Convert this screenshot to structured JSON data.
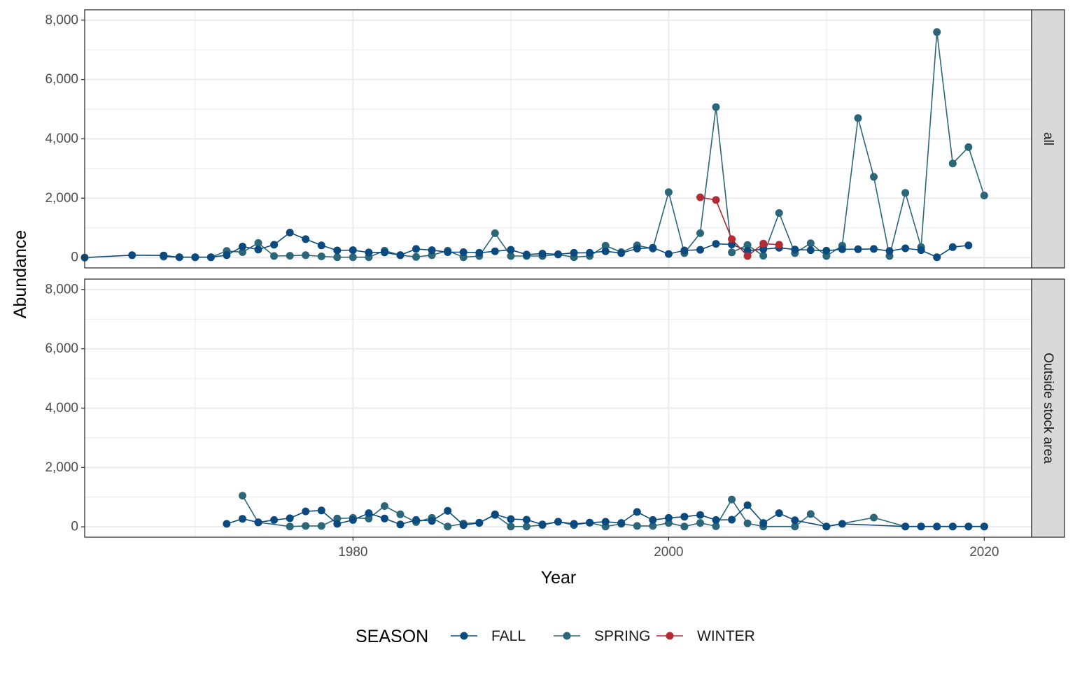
{
  "chart_data": {
    "type": "line",
    "xlabel": "Year",
    "ylabel": "Abundance",
    "xlim": [
      1963,
      2023
    ],
    "ylim": [
      -350,
      8350
    ],
    "x_ticks": [
      1980,
      2000,
      2020
    ],
    "x_tick_labels": [
      "1980",
      "2000",
      "2020"
    ],
    "y_ticks": [
      0,
      2000,
      4000,
      6000,
      8000
    ],
    "y_tick_labels": [
      "0",
      "2,000",
      "4,000",
      "6,000",
      "8,000"
    ],
    "grid": true,
    "legend": {
      "title": "SEASON",
      "position": "bottom",
      "entries": [
        "FALL",
        "SPRING",
        "WINTER"
      ]
    },
    "colors": {
      "FALL": "#0b4a7e",
      "SPRING": "#2b6778",
      "WINTER": "#b42c33",
      "strip_bg": "#d9d9d9",
      "grid": "#ebebeb"
    },
    "panels": [
      {
        "strip": "all",
        "series": [
          {
            "name": "SPRING",
            "x": [
              1968,
              1969,
              1970,
              1971,
              1972,
              1973,
              1974,
              1975,
              1976,
              1977,
              1978,
              1979,
              1980,
              1981,
              1982,
              1983,
              1984,
              1985,
              1986,
              1987,
              1988,
              1989,
              1990,
              1991,
              1992,
              1993,
              1994,
              1995,
              1996,
              1997,
              1998,
              1999,
              2000,
              2001,
              2002,
              2003,
              2004,
              2005,
              2006,
              2007,
              2008,
              2009,
              2010,
              2011,
              2012,
              2013,
              2014,
              2015,
              2016,
              2017,
              2018,
              2019,
              2020
            ],
            "y": [
              30,
              10,
              10,
              10,
              220,
              180,
              490,
              50,
              60,
              80,
              40,
              10,
              10,
              10,
              230,
              80,
              20,
              80,
              230,
              10,
              50,
              820,
              50,
              50,
              50,
              100,
              10,
              50,
              400,
              180,
              410,
              300,
              2200,
              150,
              820,
              5070,
              170,
              420,
              60,
              1500,
              150,
              480,
              50,
              400,
              4700,
              2720,
              50,
              2180,
              350,
              7600,
              3170,
              3720,
              2090
            ]
          },
          {
            "name": "FALL",
            "x": [
              1963,
              1966,
              1968,
              1969,
              1970,
              1971,
              1972,
              1973,
              1974,
              1975,
              1976,
              1977,
              1978,
              1979,
              1980,
              1981,
              1982,
              1983,
              1984,
              1985,
              1986,
              1987,
              1988,
              1989,
              1990,
              1991,
              1992,
              1993,
              1994,
              1995,
              1996,
              1997,
              1998,
              1999,
              2000,
              2001,
              2002,
              2003,
              2004,
              2005,
              2006,
              2007,
              2008,
              2009,
              2010,
              2011,
              2012,
              2013,
              2014,
              2015,
              2016,
              2017,
              2018,
              2019
            ],
            "y": [
              0,
              80,
              70,
              10,
              10,
              10,
              80,
              370,
              270,
              430,
              840,
              620,
              410,
              240,
              250,
              170,
              170,
              80,
              290,
              250,
              180,
              180,
              160,
              210,
              260,
              100,
              130,
              110,
              160,
              160,
              210,
              150,
              300,
              330,
              120,
              240,
              260,
              460,
              440,
              230,
              280,
              330,
              270,
              250,
              230,
              280,
              280,
              290,
              220,
              310,
              250,
              10,
              350,
              410
            ]
          },
          {
            "name": "WINTER",
            "x": [
              2002,
              2003,
              2004,
              2005,
              2006,
              2007
            ],
            "y": [
              2030,
              1940,
              620,
              50,
              470,
              430
            ]
          }
        ]
      },
      {
        "strip": "Outside stock area",
        "series": [
          {
            "name": "SPRING",
            "x": [
              1973,
              1974,
              1976,
              1977,
              1978,
              1979,
              1980,
              1981,
              1982,
              1983,
              1984,
              1985,
              1986,
              1987,
              1988,
              1989,
              1990,
              1991,
              1992,
              1993,
              1994,
              1995,
              1996,
              1997,
              1998,
              1999,
              2000,
              2001,
              2002,
              2003,
              2004,
              2005,
              2006,
              2008,
              2009,
              2010,
              2013,
              2015,
              2016,
              2017,
              2018,
              2019,
              2020
            ],
            "y": [
              1050,
              150,
              10,
              30,
              30,
              280,
              300,
              280,
              700,
              420,
              160,
              300,
              10,
              110,
              140,
              400,
              10,
              10,
              60,
              170,
              60,
              140,
              10,
              100,
              30,
              30,
              130,
              10,
              130,
              20,
              920,
              120,
              10,
              10,
              430,
              10,
              310,
              10,
              10,
              10,
              10,
              10,
              10
            ]
          },
          {
            "name": "FALL",
            "x": [
              1972,
              1973,
              1974,
              1975,
              1976,
              1977,
              1978,
              1979,
              1980,
              1981,
              1982,
              1983,
              1984,
              1985,
              1986,
              1987,
              1988,
              1989,
              1990,
              1991,
              1992,
              1993,
              1994,
              1995,
              1996,
              1997,
              1998,
              1999,
              2000,
              2001,
              2002,
              2003,
              2004,
              2005,
              2006,
              2007,
              2008,
              2010,
              2011,
              2015,
              2016,
              2017,
              2018,
              2019,
              2020
            ],
            "y": [
              100,
              270,
              150,
              230,
              290,
              520,
              550,
              100,
              230,
              460,
              280,
              80,
              230,
              200,
              540,
              60,
              130,
              420,
              260,
              240,
              80,
              170,
              100,
              140,
              170,
              130,
              500,
              230,
              300,
              340,
              400,
              230,
              240,
              730,
              130,
              460,
              220,
              10,
              100,
              10,
              10,
              10,
              10,
              10,
              10
            ]
          }
        ]
      }
    ]
  }
}
